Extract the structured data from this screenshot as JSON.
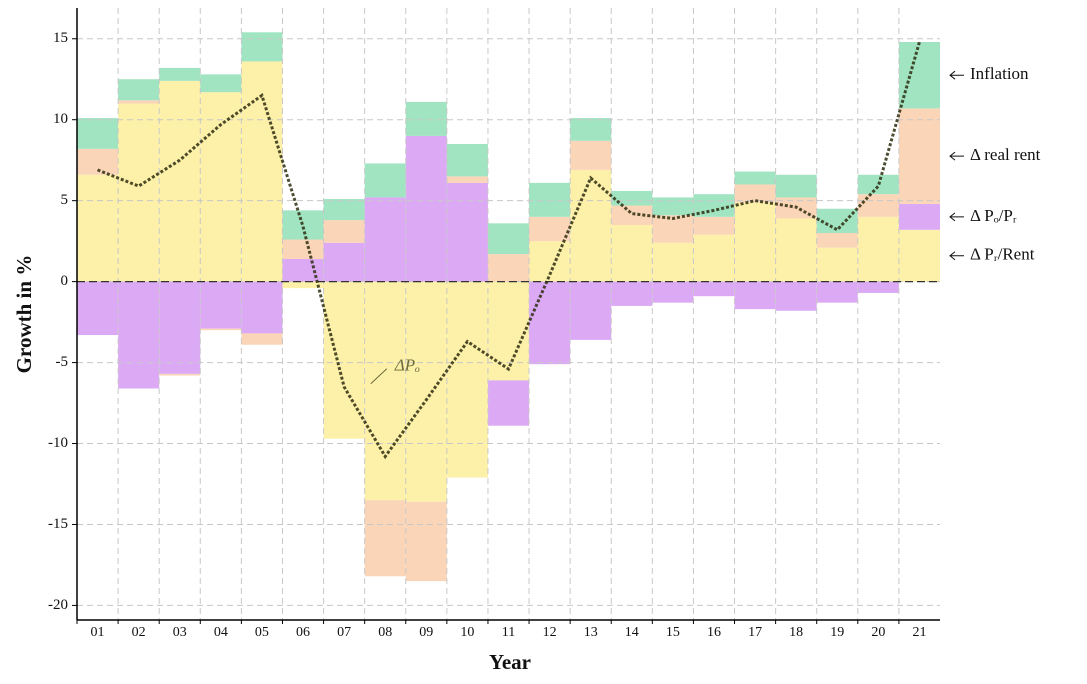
{
  "chart_data": {
    "type": "bar",
    "stacked": true,
    "xlabel": "Year",
    "ylabel": "Growth in %",
    "categories": [
      "01",
      "02",
      "03",
      "04",
      "05",
      "06",
      "07",
      "08",
      "09",
      "10",
      "11",
      "12",
      "13",
      "14",
      "15",
      "16",
      "17",
      "18",
      "19",
      "20",
      "21"
    ],
    "series": [
      {
        "name": "Δ Pᵣ/Rent",
        "color": "#fdf0a8",
        "values": [
          6.6,
          11.0,
          12.4,
          11.7,
          13.6,
          -0.4,
          -9.7,
          -13.5,
          -13.6,
          -12.1,
          -6.1,
          2.5,
          6.9,
          3.5,
          2.4,
          2.9,
          4.9,
          3.9,
          2.1,
          4.0,
          3.2
        ]
      },
      {
        "name": "Δ Pₒ/Pᵣ",
        "color": "#dcaaf5",
        "values": [
          -3.3,
          -6.6,
          -5.7,
          -2.9,
          -3.2,
          1.4,
          2.4,
          5.2,
          9.0,
          6.1,
          -2.8,
          -5.1,
          -3.6,
          -1.5,
          -1.3,
          -0.9,
          -1.7,
          -1.8,
          -1.3,
          -0.7,
          1.6
        ]
      },
      {
        "name": "Δ real rent",
        "color": "#fbd5b8",
        "values": [
          1.6,
          0.2,
          -0.1,
          -0.1,
          -0.7,
          1.2,
          1.4,
          -4.7,
          -4.9,
          0.4,
          1.7,
          1.5,
          1.8,
          1.2,
          1.7,
          1.1,
          1.1,
          1.3,
          0.9,
          1.4,
          5.9
        ]
      },
      {
        "name": "Inflation",
        "color": "#a0e4c2",
        "values": [
          1.9,
          1.3,
          0.8,
          1.1,
          1.8,
          1.8,
          1.3,
          2.1,
          2.1,
          2.0,
          1.9,
          2.1,
          1.4,
          0.9,
          1.1,
          1.4,
          0.8,
          1.4,
          1.5,
          1.2,
          4.1
        ]
      },
      {
        "name": "ΔPₒ",
        "type": "line",
        "color": "#2e2e10",
        "values": [
          6.9,
          5.9,
          7.5,
          9.7,
          11.5,
          3.4,
          -6.5,
          -10.8,
          -7.3,
          -3.7,
          -5.4,
          0.4,
          6.4,
          4.2,
          3.9,
          4.4,
          5.0,
          4.6,
          3.2,
          5.9,
          14.8
        ]
      }
    ],
    "ylim": [
      -20.9,
      16.9
    ],
    "yticks": [
      -20,
      -15,
      -10,
      -5,
      0,
      5,
      10,
      15
    ],
    "grid": true
  }
}
